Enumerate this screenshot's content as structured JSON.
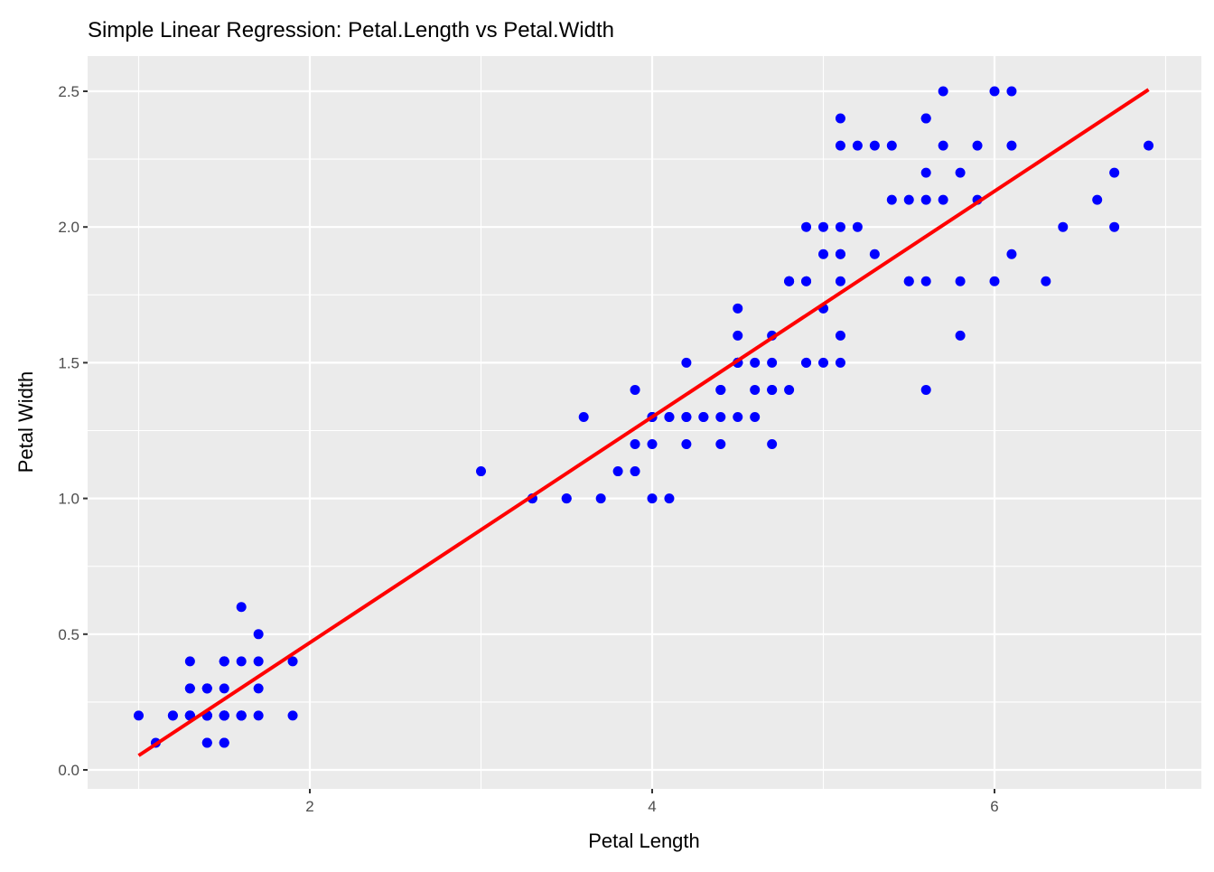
{
  "chart_data": {
    "type": "scatter",
    "title": "Simple Linear Regression: Petal.Length vs Petal.Width",
    "xlabel": "Petal Length",
    "ylabel": "Petal Width",
    "xlim": [
      0.705,
      7.195
    ],
    "ylim": [
      -0.07,
      2.62
    ],
    "x_ticks": [
      2,
      4,
      6
    ],
    "x_tick_labels": [
      "2",
      "4",
      "6"
    ],
    "y_ticks": [
      0,
      0.5,
      1,
      1.5,
      2,
      2.5
    ],
    "y_tick_labels": [
      "0.0",
      "0.5",
      "1.0",
      "1.5",
      "2.0",
      "2.5"
    ],
    "grid": true,
    "point_color": "#0000FF",
    "line_color": "#FF0000",
    "regression": {
      "intercept": -0.363,
      "slope": 0.4158,
      "x_range": [
        1.0,
        6.9
      ]
    },
    "points": [
      [
        1.4,
        0.2
      ],
      [
        1.4,
        0.2
      ],
      [
        1.3,
        0.2
      ],
      [
        1.5,
        0.2
      ],
      [
        1.4,
        0.2
      ],
      [
        1.7,
        0.4
      ],
      [
        1.4,
        0.3
      ],
      [
        1.5,
        0.2
      ],
      [
        1.4,
        0.2
      ],
      [
        1.5,
        0.1
      ],
      [
        1.5,
        0.2
      ],
      [
        1.6,
        0.2
      ],
      [
        1.4,
        0.1
      ],
      [
        1.1,
        0.1
      ],
      [
        1.2,
        0.2
      ],
      [
        1.5,
        0.4
      ],
      [
        1.3,
        0.4
      ],
      [
        1.4,
        0.3
      ],
      [
        1.7,
        0.3
      ],
      [
        1.5,
        0.3
      ],
      [
        1.7,
        0.2
      ],
      [
        1.5,
        0.4
      ],
      [
        1.0,
        0.2
      ],
      [
        1.7,
        0.5
      ],
      [
        1.9,
        0.2
      ],
      [
        1.6,
        0.2
      ],
      [
        1.6,
        0.4
      ],
      [
        1.5,
        0.2
      ],
      [
        1.4,
        0.2
      ],
      [
        1.6,
        0.2
      ],
      [
        1.6,
        0.2
      ],
      [
        1.5,
        0.4
      ],
      [
        1.5,
        0.1
      ],
      [
        1.4,
        0.2
      ],
      [
        1.5,
        0.2
      ],
      [
        1.2,
        0.2
      ],
      [
        1.3,
        0.2
      ],
      [
        1.4,
        0.1
      ],
      [
        1.3,
        0.2
      ],
      [
        1.5,
        0.2
      ],
      [
        1.3,
        0.3
      ],
      [
        1.3,
        0.3
      ],
      [
        1.3,
        0.2
      ],
      [
        1.6,
        0.6
      ],
      [
        1.9,
        0.4
      ],
      [
        1.4,
        0.3
      ],
      [
        1.6,
        0.2
      ],
      [
        1.4,
        0.2
      ],
      [
        1.5,
        0.2
      ],
      [
        1.4,
        0.2
      ],
      [
        4.7,
        1.4
      ],
      [
        4.5,
        1.5
      ],
      [
        4.9,
        1.5
      ],
      [
        4.0,
        1.3
      ],
      [
        4.6,
        1.5
      ],
      [
        4.5,
        1.3
      ],
      [
        4.7,
        1.6
      ],
      [
        3.3,
        1.0
      ],
      [
        4.6,
        1.3
      ],
      [
        3.9,
        1.4
      ],
      [
        3.5,
        1.0
      ],
      [
        4.2,
        1.5
      ],
      [
        4.0,
        1.0
      ],
      [
        4.7,
        1.4
      ],
      [
        3.6,
        1.3
      ],
      [
        4.4,
        1.4
      ],
      [
        4.5,
        1.5
      ],
      [
        4.1,
        1.0
      ],
      [
        4.5,
        1.5
      ],
      [
        3.9,
        1.1
      ],
      [
        4.8,
        1.8
      ],
      [
        4.0,
        1.3
      ],
      [
        4.9,
        1.5
      ],
      [
        4.7,
        1.2
      ],
      [
        4.3,
        1.3
      ],
      [
        4.4,
        1.4
      ],
      [
        4.8,
        1.4
      ],
      [
        5.0,
        1.7
      ],
      [
        4.5,
        1.5
      ],
      [
        3.5,
        1.0
      ],
      [
        3.8,
        1.1
      ],
      [
        3.7,
        1.0
      ],
      [
        3.9,
        1.2
      ],
      [
        5.1,
        1.6
      ],
      [
        4.5,
        1.5
      ],
      [
        4.5,
        1.6
      ],
      [
        4.7,
        1.5
      ],
      [
        4.4,
        1.3
      ],
      [
        4.1,
        1.3
      ],
      [
        4.0,
        1.3
      ],
      [
        4.4,
        1.2
      ],
      [
        4.6,
        1.4
      ],
      [
        4.0,
        1.2
      ],
      [
        3.3,
        1.0
      ],
      [
        4.2,
        1.3
      ],
      [
        4.2,
        1.2
      ],
      [
        4.2,
        1.3
      ],
      [
        4.3,
        1.3
      ],
      [
        3.0,
        1.1
      ],
      [
        4.1,
        1.3
      ],
      [
        6.0,
        2.5
      ],
      [
        5.1,
        1.9
      ],
      [
        5.9,
        2.1
      ],
      [
        5.6,
        1.8
      ],
      [
        5.8,
        2.2
      ],
      [
        6.6,
        2.1
      ],
      [
        4.5,
        1.7
      ],
      [
        6.3,
        1.8
      ],
      [
        5.8,
        1.8
      ],
      [
        6.1,
        2.5
      ],
      [
        5.1,
        2.0
      ],
      [
        5.3,
        1.9
      ],
      [
        5.5,
        2.1
      ],
      [
        5.0,
        2.0
      ],
      [
        5.1,
        2.4
      ],
      [
        5.3,
        2.3
      ],
      [
        5.5,
        1.8
      ],
      [
        6.7,
        2.2
      ],
      [
        6.9,
        2.3
      ],
      [
        5.0,
        1.5
      ],
      [
        5.7,
        2.3
      ],
      [
        4.9,
        2.0
      ],
      [
        6.7,
        2.0
      ],
      [
        4.9,
        1.8
      ],
      [
        5.7,
        2.1
      ],
      [
        6.0,
        1.8
      ],
      [
        4.8,
        1.8
      ],
      [
        4.9,
        1.8
      ],
      [
        5.6,
        2.1
      ],
      [
        5.8,
        1.6
      ],
      [
        6.1,
        1.9
      ],
      [
        6.4,
        2.0
      ],
      [
        5.6,
        2.2
      ],
      [
        5.1,
        1.5
      ],
      [
        5.6,
        1.4
      ],
      [
        6.1,
        2.3
      ],
      [
        5.6,
        2.4
      ],
      [
        5.5,
        1.8
      ],
      [
        4.8,
        1.8
      ],
      [
        5.4,
        2.1
      ],
      [
        5.6,
        2.4
      ],
      [
        5.1,
        2.3
      ],
      [
        5.1,
        1.9
      ],
      [
        5.9,
        2.3
      ],
      [
        5.7,
        2.5
      ],
      [
        5.2,
        2.3
      ],
      [
        5.0,
        1.9
      ],
      [
        5.2,
        2.0
      ],
      [
        5.4,
        2.3
      ],
      [
        5.1,
        1.8
      ]
    ]
  }
}
